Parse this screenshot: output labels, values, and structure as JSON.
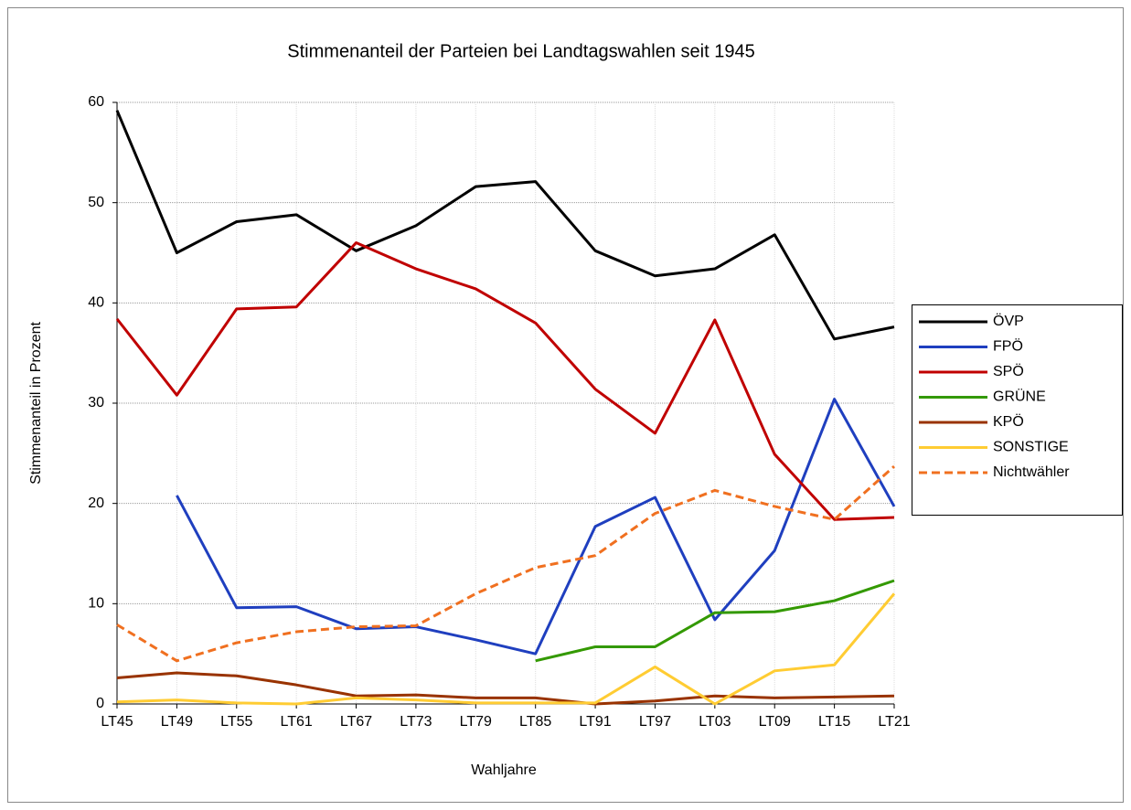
{
  "chart_data": {
    "type": "line",
    "title": "Stimmenanteil der Parteien bei Landtagswahlen seit 1945",
    "x_label": "Wahljahre",
    "y_label": "Stimmenanteil in Prozent",
    "categories": [
      "LT45",
      "LT49",
      "LT55",
      "LT61",
      "LT67",
      "LT73",
      "LT79",
      "LT85",
      "LT91",
      "LT97",
      "LT03",
      "LT09",
      "LT15",
      "LT21"
    ],
    "ylim": [
      0,
      60
    ],
    "yticks": [
      0,
      10,
      20,
      30,
      40,
      50,
      60
    ],
    "grid": true,
    "legend": "right",
    "series": [
      {
        "name": "ÖVP",
        "color": "#000000",
        "dashed": false,
        "values": [
          59.2,
          45.0,
          48.1,
          48.8,
          45.2,
          47.7,
          51.6,
          52.1,
          45.2,
          42.7,
          43.4,
          46.8,
          36.4,
          37.6
        ]
      },
      {
        "name": "FPÖ",
        "color": "#1f3fbf",
        "dashed": false,
        "values": [
          null,
          20.8,
          9.6,
          9.7,
          7.5,
          7.7,
          6.4,
          5.0,
          17.7,
          20.6,
          8.4,
          15.3,
          30.4,
          19.7
        ]
      },
      {
        "name": "SPÖ",
        "color": "#c00000",
        "dashed": false,
        "values": [
          38.4,
          30.8,
          39.4,
          39.6,
          46.0,
          43.4,
          41.4,
          38.0,
          31.4,
          27.0,
          38.3,
          24.9,
          18.4,
          18.6
        ]
      },
      {
        "name": "GRÜNE",
        "color": "#339900",
        "dashed": false,
        "values": [
          null,
          null,
          null,
          null,
          null,
          null,
          null,
          4.3,
          5.7,
          5.7,
          9.1,
          9.2,
          10.3,
          12.3
        ]
      },
      {
        "name": "KPÖ",
        "color": "#993300",
        "dashed": false,
        "values": [
          2.6,
          3.1,
          2.8,
          1.9,
          0.8,
          0.9,
          0.6,
          0.6,
          0.0,
          0.3,
          0.8,
          0.6,
          0.7,
          0.8
        ]
      },
      {
        "name": "SONSTIGE",
        "color": "#ffcc33",
        "dashed": false,
        "values": [
          0.2,
          0.4,
          0.1,
          0.0,
          0.6,
          0.4,
          0.1,
          0.1,
          0.1,
          3.7,
          0.0,
          3.3,
          3.9,
          11.0
        ]
      },
      {
        "name": "Nichtwähler",
        "color": "#f07020",
        "dashed": true,
        "values": [
          7.9,
          4.3,
          6.1,
          7.2,
          7.7,
          7.8,
          11.0,
          13.6,
          14.8,
          19.0,
          21.3,
          19.7,
          18.4,
          23.7
        ]
      }
    ]
  }
}
